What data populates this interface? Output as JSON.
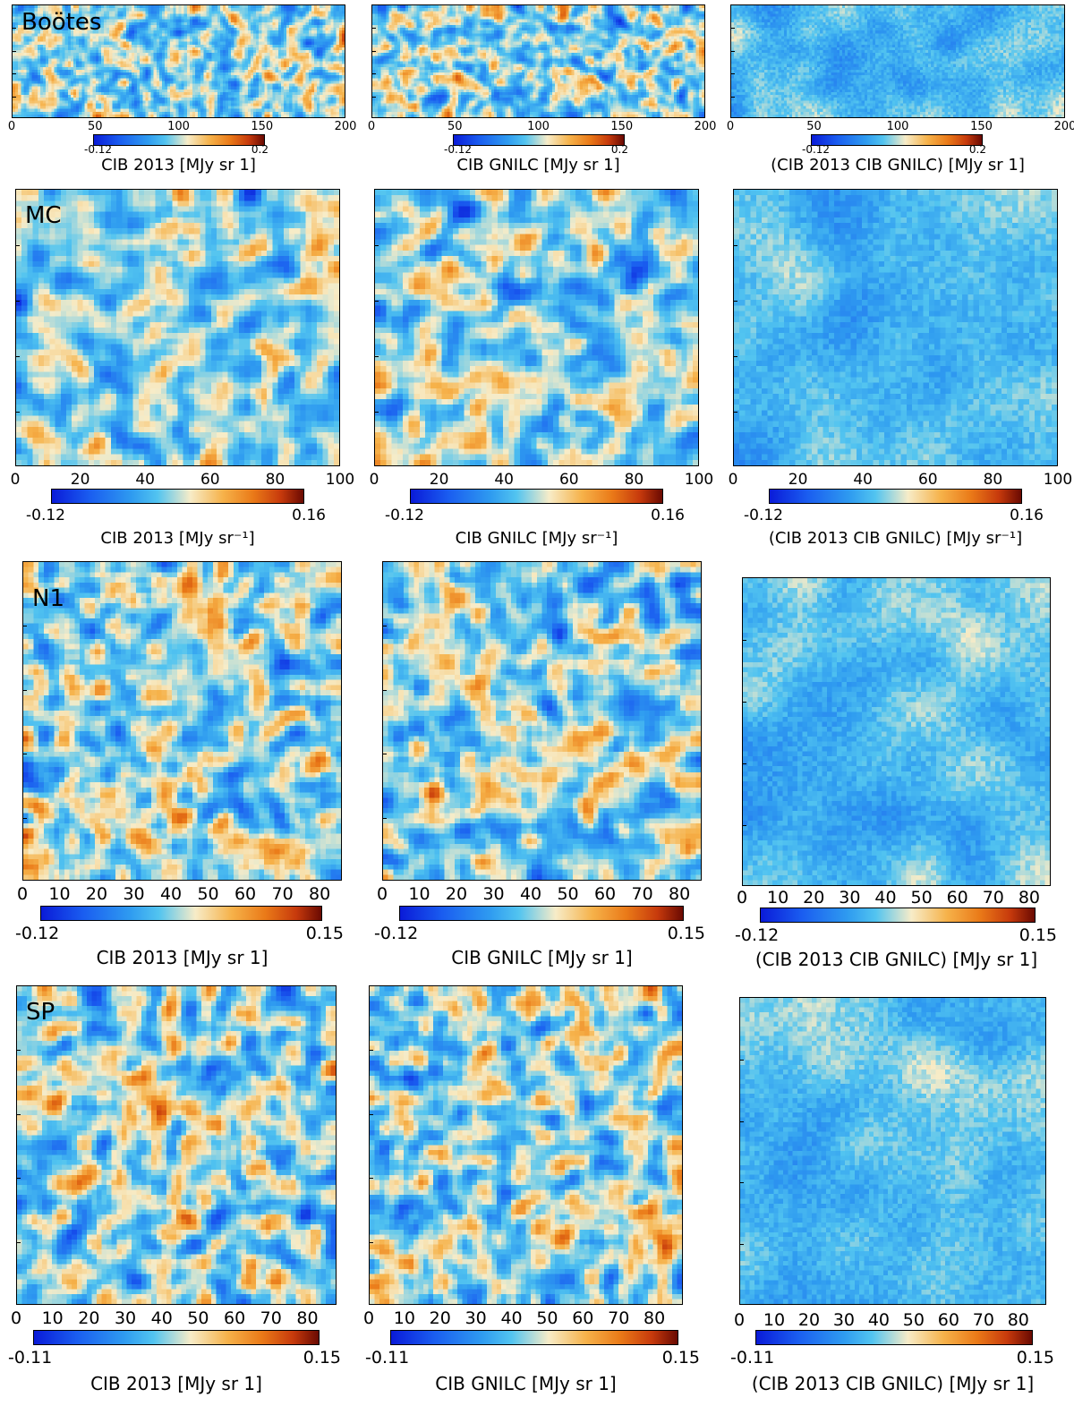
{
  "chart_data": [
    {
      "type": "heatmap",
      "region": "Boötes",
      "column": "CIB 2013",
      "colorbar_label": "CIB 2013 [MJy sr  1]",
      "xticks": [
        "0",
        "50",
        "100",
        "150",
        "200"
      ],
      "xlim": [
        0,
        200
      ],
      "cmin": "-0.12",
      "cmax": "0.2"
    },
    {
      "type": "heatmap",
      "region": "Boötes",
      "column": "CIB GNILC",
      "colorbar_label": "CIB GNILC [MJy sr  1]",
      "xticks": [
        "0",
        "50",
        "100",
        "150",
        "200"
      ],
      "xlim": [
        0,
        200
      ],
      "cmin": "-0.12",
      "cmax": "0.2"
    },
    {
      "type": "heatmap",
      "region": "Boötes",
      "column": "difference",
      "colorbar_label": "(CIB 2013     CIB GNILC) [MJy sr  1]",
      "xticks": [
        "0",
        "50",
        "100",
        "150",
        "200"
      ],
      "xlim": [
        0,
        200
      ],
      "cmin": "-0.12",
      "cmax": "0.2"
    },
    {
      "type": "heatmap",
      "region": "MC",
      "column": "CIB 2013",
      "colorbar_label": "CIB 2013 [MJy sr⁻¹]",
      "xticks": [
        "0",
        "20",
        "40",
        "60",
        "80",
        "100"
      ],
      "xlim": [
        0,
        100
      ],
      "cmin": "-0.12",
      "cmax": "0.16"
    },
    {
      "type": "heatmap",
      "region": "MC",
      "column": "CIB GNILC",
      "colorbar_label": "CIB GNILC [MJy sr⁻¹]",
      "xticks": [
        "0",
        "20",
        "40",
        "60",
        "80",
        "100"
      ],
      "xlim": [
        0,
        100
      ],
      "cmin": "-0.12",
      "cmax": "0.16"
    },
    {
      "type": "heatmap",
      "region": "MC",
      "column": "difference",
      "colorbar_label": "(CIB 2013     CIB GNILC) [MJy sr⁻¹]",
      "xticks": [
        "0",
        "20",
        "40",
        "60",
        "80",
        "100"
      ],
      "xlim": [
        0,
        100
      ],
      "cmin": "-0.12",
      "cmax": "0.16"
    },
    {
      "type": "heatmap",
      "region": "N1",
      "column": "CIB 2013",
      "colorbar_label": "CIB 2013 [MJy sr  1]",
      "xticks": [
        "0",
        "10",
        "20",
        "30",
        "40",
        "50",
        "60",
        "70",
        "80"
      ],
      "xlim": [
        0,
        86
      ],
      "cmin": "-0.12",
      "cmax": "0.15"
    },
    {
      "type": "heatmap",
      "region": "N1",
      "column": "CIB GNILC",
      "colorbar_label": "CIB GNILC [MJy sr  1]",
      "xticks": [
        "0",
        "10",
        "20",
        "30",
        "40",
        "50",
        "60",
        "70",
        "80"
      ],
      "xlim": [
        0,
        86
      ],
      "cmin": "-0.12",
      "cmax": "0.15"
    },
    {
      "type": "heatmap",
      "region": "N1",
      "column": "difference",
      "colorbar_label": "(CIB 2013     CIB GNILC) [MJy sr  1]",
      "xticks": [
        "0",
        "10",
        "20",
        "30",
        "40",
        "50",
        "60",
        "70",
        "80"
      ],
      "xlim": [
        0,
        86
      ],
      "cmin": "-0.12",
      "cmax": "0.15"
    },
    {
      "type": "heatmap",
      "region": "SP",
      "column": "CIB 2013",
      "colorbar_label": "CIB 2013 [MJy sr  1]",
      "xticks": [
        "0",
        "10",
        "20",
        "30",
        "40",
        "50",
        "60",
        "70",
        "80"
      ],
      "xlim": [
        0,
        88
      ],
      "cmin": "-0.11",
      "cmax": "0.15"
    },
    {
      "type": "heatmap",
      "region": "SP",
      "column": "CIB GNILC",
      "colorbar_label": "CIB GNILC [MJy sr  1]",
      "xticks": [
        "0",
        "10",
        "20",
        "30",
        "40",
        "50",
        "60",
        "70",
        "80"
      ],
      "xlim": [
        0,
        88
      ],
      "cmin": "-0.11",
      "cmax": "0.15"
    },
    {
      "type": "heatmap",
      "region": "SP",
      "column": "difference",
      "colorbar_label": "(CIB 2013     CIB GNILC) [MJy sr  1]",
      "xticks": [
        "0",
        "10",
        "20",
        "30",
        "40",
        "50",
        "60",
        "70",
        "80"
      ],
      "xlim": [
        0,
        88
      ],
      "cmin": "-0.11",
      "cmax": "0.15"
    }
  ],
  "row_labels": {
    "bootes": "Boötes",
    "mc": "MC",
    "n1": "N1",
    "sp": "SP"
  },
  "colors": {
    "low": "#0a1bd8",
    "mid_low": "#2f9cf0",
    "mid": "#f7ecc8",
    "mid_high": "#ea7a18",
    "high": "#6a0a02"
  }
}
